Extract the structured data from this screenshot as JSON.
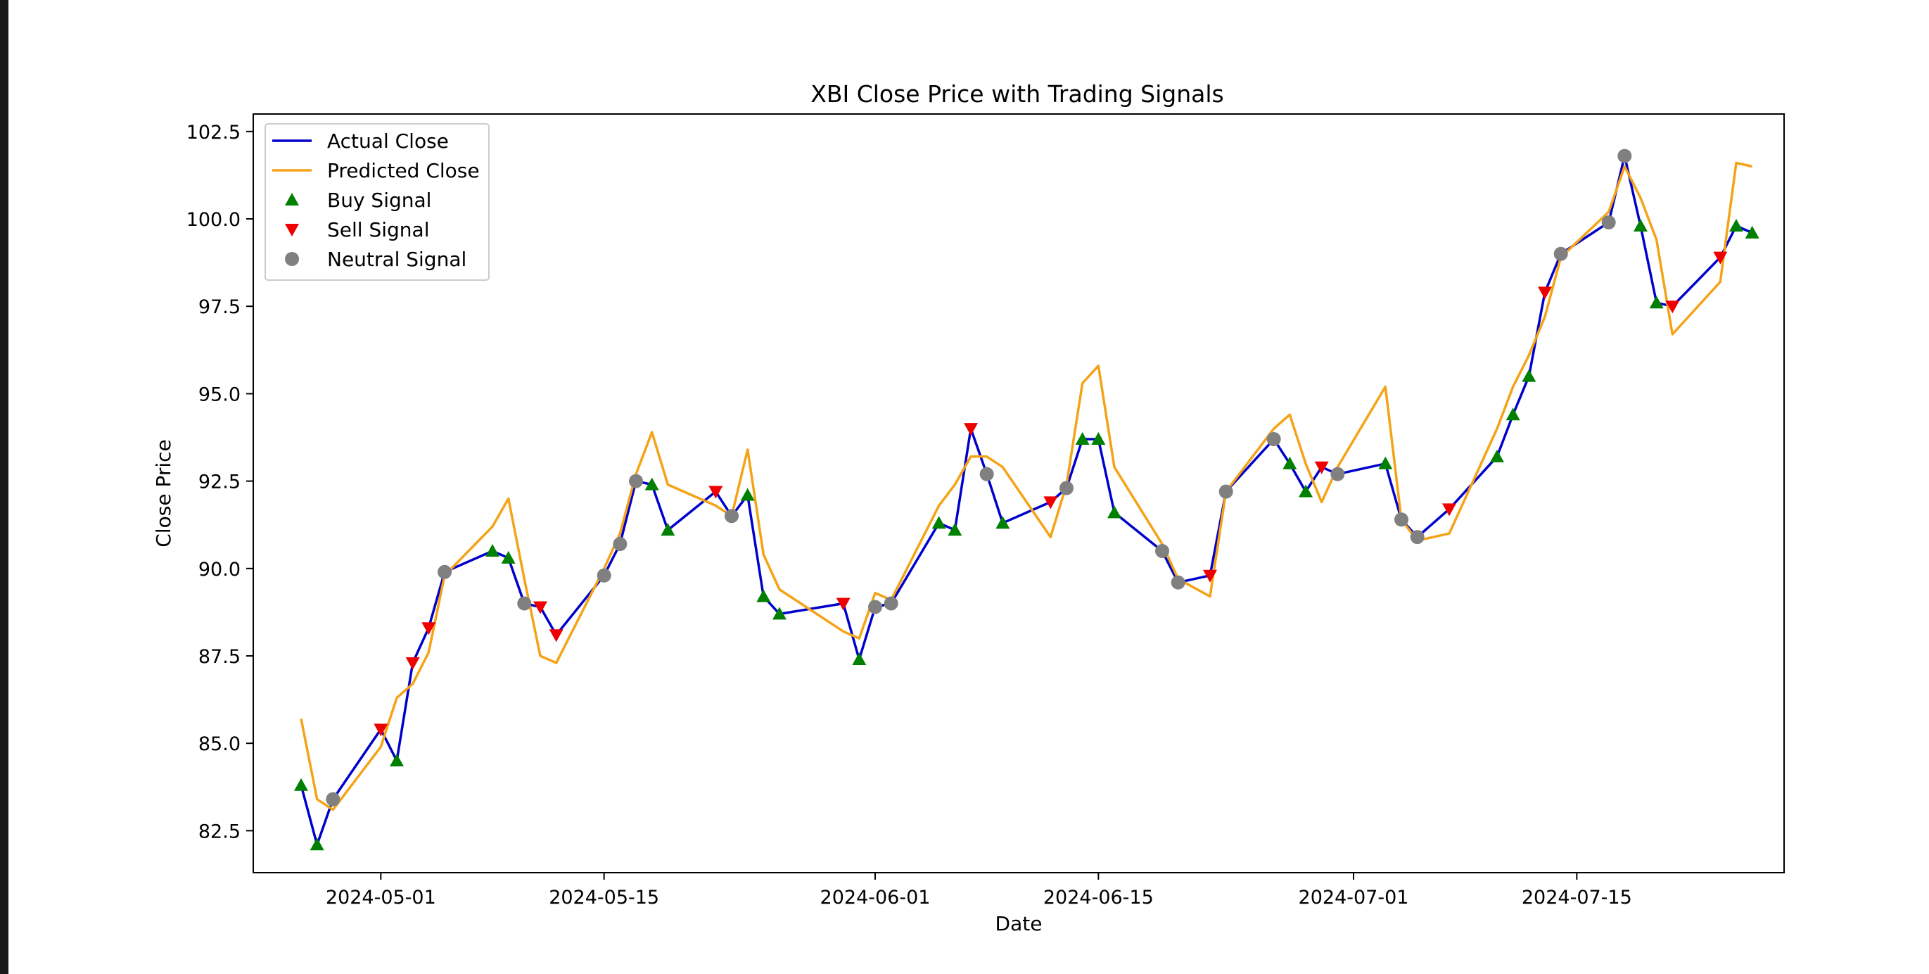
{
  "chart_data": {
    "type": "line",
    "title": "XBI Close Price with Trading Signals",
    "xlabel": "Date",
    "ylabel": "Close Price",
    "xlim": [
      "2024-04-23",
      "2024-07-28"
    ],
    "ylim": [
      81.3,
      103.0
    ],
    "x_ticks": [
      "2024-05-01",
      "2024-05-15",
      "2024-06-01",
      "2024-06-15",
      "2024-07-01",
      "2024-07-15"
    ],
    "y_ticks": [
      82.5,
      85.0,
      87.5,
      90.0,
      92.5,
      95.0,
      97.5,
      100.0,
      102.5
    ],
    "y_tick_labels": [
      "82.5",
      "85.0",
      "87.5",
      "90.0",
      "92.5",
      "95.0",
      "97.5",
      "100.0",
      "102.5"
    ],
    "grid": false,
    "legend_position": "upper-left",
    "legend": [
      {
        "label": "Actual Close",
        "kind": "line",
        "color": "#0000cc"
      },
      {
        "label": "Predicted Close",
        "kind": "line",
        "color": "#f5a316"
      },
      {
        "label": "Buy Signal",
        "kind": "marker",
        "shape": "triangle-up",
        "color": "#008000"
      },
      {
        "label": "Sell Signal",
        "kind": "marker",
        "shape": "triangle-down",
        "color": "#ee0000"
      },
      {
        "label": "Neutral Signal",
        "kind": "marker",
        "shape": "circle",
        "color": "#808080"
      }
    ],
    "points": [
      {
        "date": "2024-04-26",
        "actual": 83.8,
        "predicted": 85.7,
        "signal": "buy"
      },
      {
        "date": "2024-04-27",
        "actual": 82.1,
        "predicted": 83.4,
        "signal": "buy"
      },
      {
        "date": "2024-04-28",
        "actual": 83.4,
        "predicted": 83.1,
        "signal": "neutral"
      },
      {
        "date": "2024-05-01",
        "actual": 85.4,
        "predicted": 84.9,
        "signal": "sell"
      },
      {
        "date": "2024-05-02",
        "actual": 84.5,
        "predicted": 86.3,
        "signal": "buy"
      },
      {
        "date": "2024-05-03",
        "actual": 87.3,
        "predicted": 86.7,
        "signal": "sell"
      },
      {
        "date": "2024-05-04",
        "actual": 88.3,
        "predicted": 87.6,
        "signal": "sell"
      },
      {
        "date": "2024-05-05",
        "actual": 89.9,
        "predicted": 89.8,
        "signal": "neutral"
      },
      {
        "date": "2024-05-08",
        "actual": 90.5,
        "predicted": 91.2,
        "signal": "buy"
      },
      {
        "date": "2024-05-09",
        "actual": 90.3,
        "predicted": 92.0,
        "signal": "buy"
      },
      {
        "date": "2024-05-10",
        "actual": 89.0,
        "predicted": 89.7,
        "signal": "neutral"
      },
      {
        "date": "2024-05-11",
        "actual": 88.9,
        "predicted": 87.5,
        "signal": "sell"
      },
      {
        "date": "2024-05-12",
        "actual": 88.1,
        "predicted": 87.3,
        "signal": "sell"
      },
      {
        "date": "2024-05-15",
        "actual": 89.8,
        "predicted": 90.0,
        "signal": "neutral"
      },
      {
        "date": "2024-05-16",
        "actual": 90.7,
        "predicted": 91.0,
        "signal": "neutral"
      },
      {
        "date": "2024-05-17",
        "actual": 92.5,
        "predicted": 92.7,
        "signal": "neutral"
      },
      {
        "date": "2024-05-18",
        "actual": 92.4,
        "predicted": 93.9,
        "signal": "buy"
      },
      {
        "date": "2024-05-19",
        "actual": 91.1,
        "predicted": 92.4,
        "signal": "buy"
      },
      {
        "date": "2024-05-22",
        "actual": 92.2,
        "predicted": 91.8,
        "signal": "sell"
      },
      {
        "date": "2024-05-23",
        "actual": 91.5,
        "predicted": 91.5,
        "signal": "neutral"
      },
      {
        "date": "2024-05-24",
        "actual": 92.1,
        "predicted": 93.4,
        "signal": "buy"
      },
      {
        "date": "2024-05-25",
        "actual": 89.2,
        "predicted": 90.4,
        "signal": "buy"
      },
      {
        "date": "2024-05-26",
        "actual": 88.7,
        "predicted": 89.4,
        "signal": "buy"
      },
      {
        "date": "2024-05-30",
        "actual": 89.0,
        "predicted": 88.2,
        "signal": "sell"
      },
      {
        "date": "2024-05-31",
        "actual": 87.4,
        "predicted": 88.0,
        "signal": "buy"
      },
      {
        "date": "2024-06-01",
        "actual": 88.9,
        "predicted": 89.3,
        "signal": "neutral"
      },
      {
        "date": "2024-06-02",
        "actual": 89.0,
        "predicted": 89.1,
        "signal": "neutral"
      },
      {
        "date": "2024-06-05",
        "actual": 91.3,
        "predicted": 91.8,
        "signal": "buy"
      },
      {
        "date": "2024-06-06",
        "actual": 91.1,
        "predicted": 92.4,
        "signal": "buy"
      },
      {
        "date": "2024-06-07",
        "actual": 94.0,
        "predicted": 93.2,
        "signal": "sell"
      },
      {
        "date": "2024-06-08",
        "actual": 92.7,
        "predicted": 93.2,
        "signal": "neutral"
      },
      {
        "date": "2024-06-09",
        "actual": 91.3,
        "predicted": 92.9,
        "signal": "buy"
      },
      {
        "date": "2024-06-12",
        "actual": 91.9,
        "predicted": 90.9,
        "signal": "sell"
      },
      {
        "date": "2024-06-13",
        "actual": 92.3,
        "predicted": 92.4,
        "signal": "neutral"
      },
      {
        "date": "2024-06-14",
        "actual": 93.7,
        "predicted": 95.3,
        "signal": "buy"
      },
      {
        "date": "2024-06-15",
        "actual": 93.7,
        "predicted": 95.8,
        "signal": "buy"
      },
      {
        "date": "2024-06-16",
        "actual": 91.6,
        "predicted": 92.9,
        "signal": "buy"
      },
      {
        "date": "2024-06-19",
        "actual": 90.5,
        "predicted": 90.7,
        "signal": "neutral"
      },
      {
        "date": "2024-06-20",
        "actual": 89.6,
        "predicted": 89.7,
        "signal": "neutral"
      },
      {
        "date": "2024-06-22",
        "actual": 89.8,
        "predicted": 89.2,
        "signal": "sell"
      },
      {
        "date": "2024-06-23",
        "actual": 92.2,
        "predicted": 92.2,
        "signal": "neutral"
      },
      {
        "date": "2024-06-26",
        "actual": 93.7,
        "predicted": 94.0,
        "signal": "neutral"
      },
      {
        "date": "2024-06-27",
        "actual": 93.0,
        "predicted": 94.4,
        "signal": "buy"
      },
      {
        "date": "2024-06-28",
        "actual": 92.2,
        "predicted": 93.0,
        "signal": "buy"
      },
      {
        "date": "2024-06-29",
        "actual": 92.9,
        "predicted": 91.9,
        "signal": "sell"
      },
      {
        "date": "2024-06-30",
        "actual": 92.7,
        "predicted": 92.9,
        "signal": "neutral"
      },
      {
        "date": "2024-07-03",
        "actual": 93.0,
        "predicted": 95.2,
        "signal": "buy"
      },
      {
        "date": "2024-07-04",
        "actual": 91.4,
        "predicted": 91.4,
        "signal": "neutral"
      },
      {
        "date": "2024-07-05",
        "actual": 90.9,
        "predicted": 90.8,
        "signal": "neutral"
      },
      {
        "date": "2024-07-07",
        "actual": 91.7,
        "predicted": 91.0,
        "signal": "sell"
      },
      {
        "date": "2024-07-10",
        "actual": 93.2,
        "predicted": 94.0,
        "signal": "buy"
      },
      {
        "date": "2024-07-11",
        "actual": 94.4,
        "predicted": 95.2,
        "signal": "buy"
      },
      {
        "date": "2024-07-12",
        "actual": 95.5,
        "predicted": 96.1,
        "signal": "buy"
      },
      {
        "date": "2024-07-13",
        "actual": 97.9,
        "predicted": 97.2,
        "signal": "sell"
      },
      {
        "date": "2024-07-14",
        "actual": 99.0,
        "predicted": 98.9,
        "signal": "neutral"
      },
      {
        "date": "2024-07-17",
        "actual": 99.9,
        "predicted": 100.2,
        "signal": "neutral"
      },
      {
        "date": "2024-07-18",
        "actual": 101.8,
        "predicted": 101.5,
        "signal": "neutral"
      },
      {
        "date": "2024-07-19",
        "actual": 99.8,
        "predicted": 100.6,
        "signal": "buy"
      },
      {
        "date": "2024-07-20",
        "actual": 97.6,
        "predicted": 99.4,
        "signal": "buy"
      },
      {
        "date": "2024-07-21",
        "actual": 97.5,
        "predicted": 96.7,
        "signal": "sell"
      },
      {
        "date": "2024-07-24",
        "actual": 98.9,
        "predicted": 98.2,
        "signal": "sell"
      },
      {
        "date": "2024-07-25",
        "actual": 99.8,
        "predicted": 101.6,
        "signal": "buy"
      },
      {
        "date": "2024-07-26",
        "actual": 99.6,
        "predicted": 101.5,
        "signal": "buy"
      }
    ]
  }
}
